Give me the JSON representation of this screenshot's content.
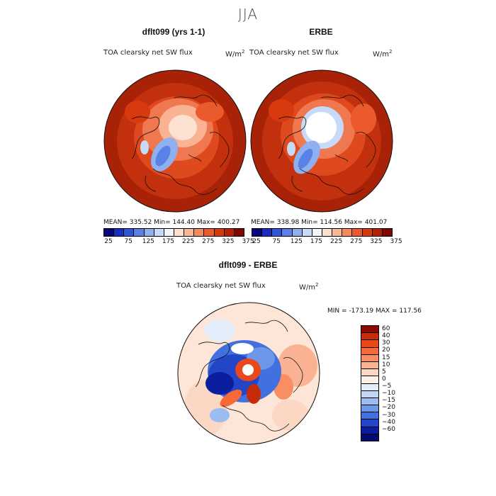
{
  "title": "JJA",
  "panels": [
    {
      "title": "dflt099 (yrs 1-1)",
      "variable": "TOA clearsky net SW flux",
      "units_base": "W/m",
      "units_exp": "2",
      "stats": "MEAN= 335.52   Min= 144.40   Max= 400.27"
    },
    {
      "title": "ERBE",
      "variable": "TOA clearsky net SW flux",
      "units_base": "W/m",
      "units_exp": "2",
      "stats": "MEAN= 338.98   Min= 114.56   Max= 401.07"
    }
  ],
  "colorbar_top": {
    "labels": [
      "25",
      "75",
      "125",
      "175",
      "225",
      "275",
      "325",
      "375"
    ],
    "colors": [
      "#08087a",
      "#1a2fbf",
      "#3056d8",
      "#5a82e6",
      "#8fb0ef",
      "#c6dbf7",
      "#f2f6fc",
      "#fde0cc",
      "#f9b896",
      "#f48a5e",
      "#ea5a2c",
      "#d83a10",
      "#b52204",
      "#800800"
    ]
  },
  "diff_panel": {
    "title": "dflt099 - ERBE",
    "variable": "TOA clearsky net SW flux",
    "units_base": "W/m",
    "units_exp": "2",
    "minmax": "MIN = -173.19  MAX = 117.56"
  },
  "colorbar_diff": {
    "labels": [
      "60",
      "40",
      "30",
      "20",
      "15",
      "10",
      "5",
      "0",
      "−5",
      "−10",
      "−15",
      "−20",
      "−30",
      "−40",
      "−60"
    ],
    "colors": [
      "#8c0a02",
      "#c72c0a",
      "#e8481a",
      "#f56a38",
      "#f88e62",
      "#fab293",
      "#fcd7c4",
      "#fdf0e6",
      "#e3eefa",
      "#c2d7f5",
      "#9bbcef",
      "#6d97e8",
      "#4271df",
      "#2346c9",
      "#0a1e9e",
      "#050a70"
    ]
  }
}
